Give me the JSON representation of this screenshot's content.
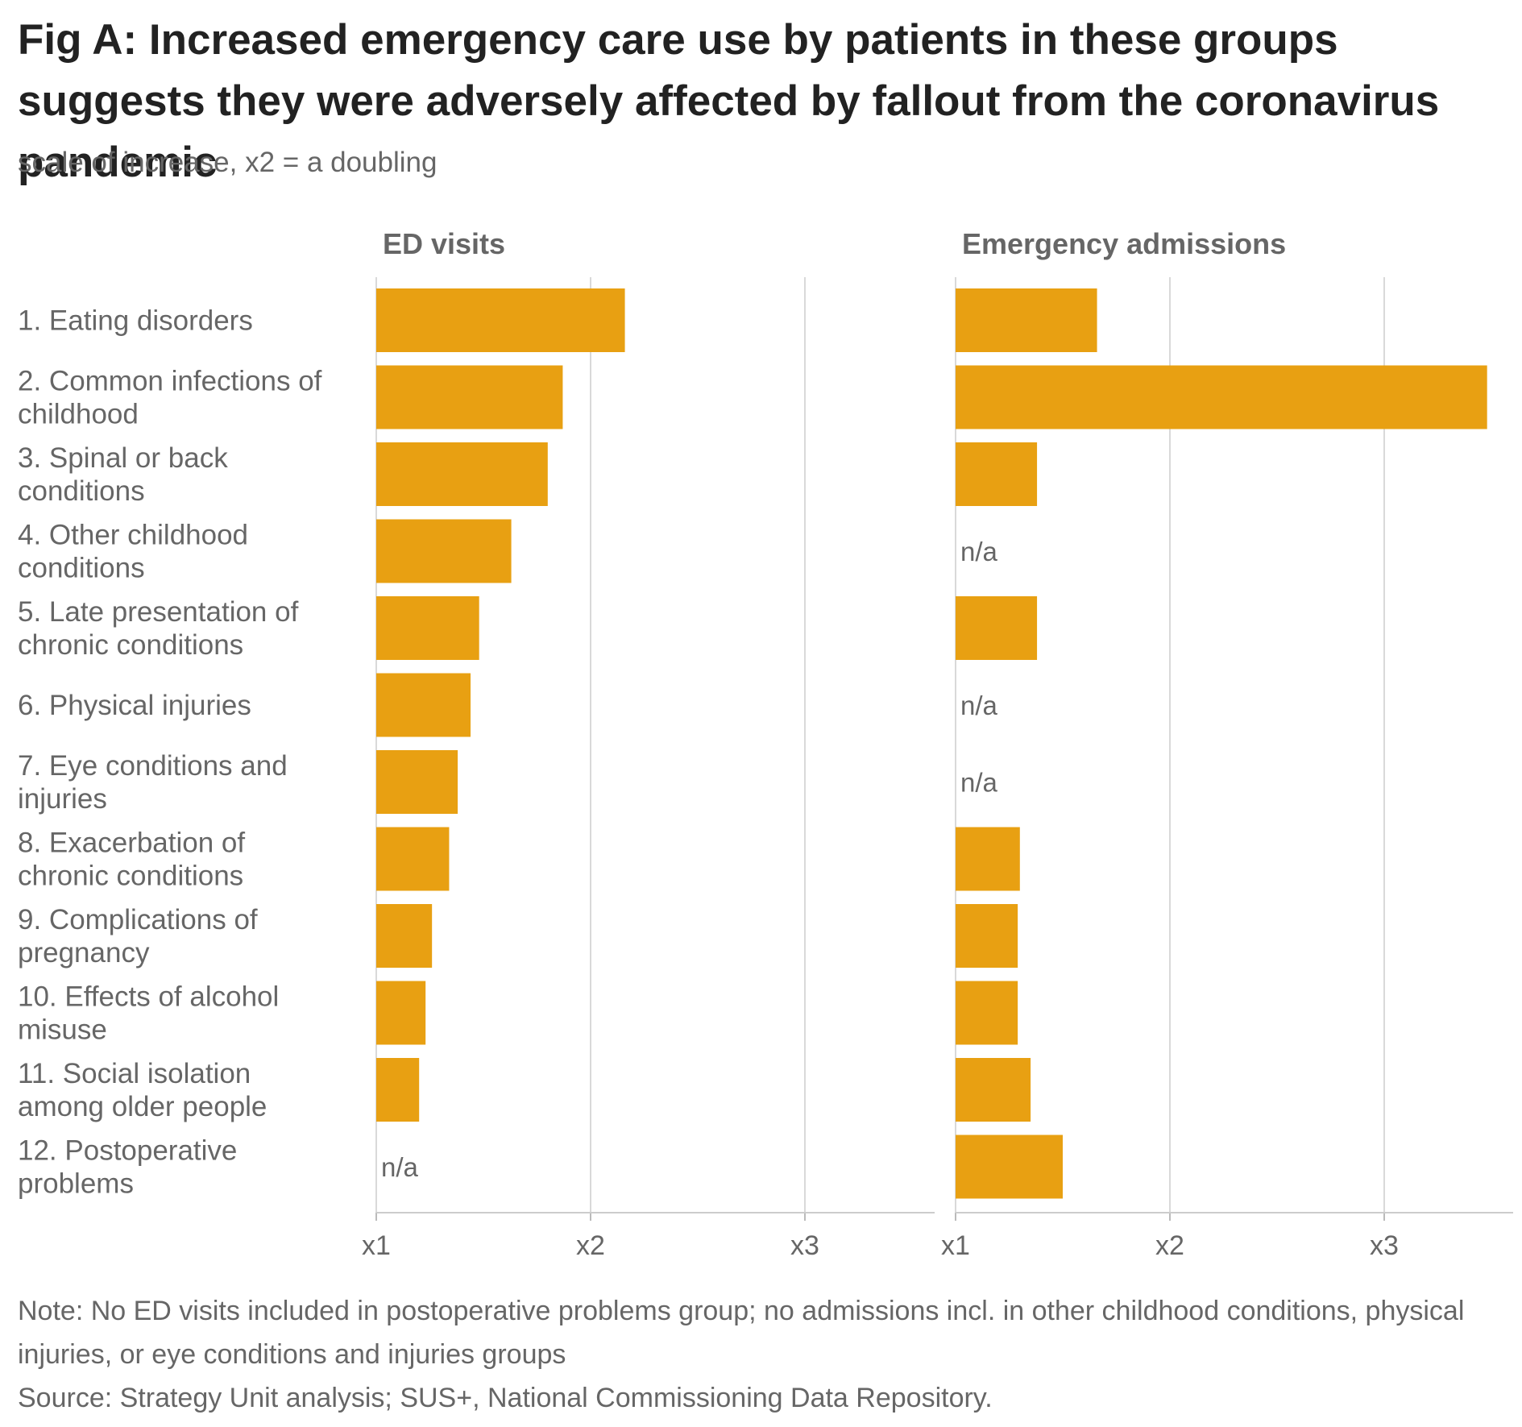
{
  "title": "Fig A: Increased emergency care use by patients in these groups suggests they were adversely affected by fallout from the coronavirus pandemic",
  "subtitle": "scale of increase, x2 = a doubling",
  "note": "Note: No ED visits included in postoperative problems group; no admissions incl. in other childhood conditions, physical injuries, or eye conditions and injuries groups",
  "source": "Source: Strategy Unit analysis; SUS+, National Commissioning Data Repository.",
  "colors": {
    "bar": "#E8A012",
    "grid": "#d9d9d9",
    "text": "#666666"
  },
  "chart_data": {
    "type": "bar",
    "orientation": "horizontal",
    "title": "Fig A: Increased emergency care use by patients in these groups suggests they were adversely affected by fallout from the coronavirus pandemic",
    "subtitle": "scale of increase, x2 = a doubling",
    "categories": [
      [
        "1. Eating disorders"
      ],
      [
        "2. Common infections of",
        "childhood"
      ],
      [
        "3. Spinal or back",
        "conditions"
      ],
      [
        "4. Other childhood",
        "conditions"
      ],
      [
        "5. Late presentation of",
        "chronic conditions"
      ],
      [
        "6. Physical injuries"
      ],
      [
        "7. Eye conditions and",
        "injuries"
      ],
      [
        "8. Exacerbation of",
        "chronic conditions"
      ],
      [
        "9. Complications of",
        "pregnancy"
      ],
      [
        "10. Effects of alcohol",
        "misuse"
      ],
      [
        "11. Social isolation",
        "among older people"
      ],
      [
        "12. Postoperative",
        "problems"
      ]
    ],
    "xlim": [
      1,
      3.6
    ],
    "ticks": [
      1,
      2,
      3
    ],
    "tick_labels": [
      "x1",
      "x2",
      "x3"
    ],
    "missing_label": "n/a",
    "panels": [
      {
        "name": "ED visits",
        "values": [
          2.16,
          1.87,
          1.8,
          1.63,
          1.48,
          1.44,
          1.38,
          1.34,
          1.26,
          1.23,
          1.2,
          null
        ]
      },
      {
        "name": "Emergency admissions",
        "values": [
          1.66,
          3.48,
          1.38,
          null,
          1.38,
          null,
          null,
          1.3,
          1.29,
          1.29,
          1.35,
          1.5
        ]
      }
    ]
  }
}
